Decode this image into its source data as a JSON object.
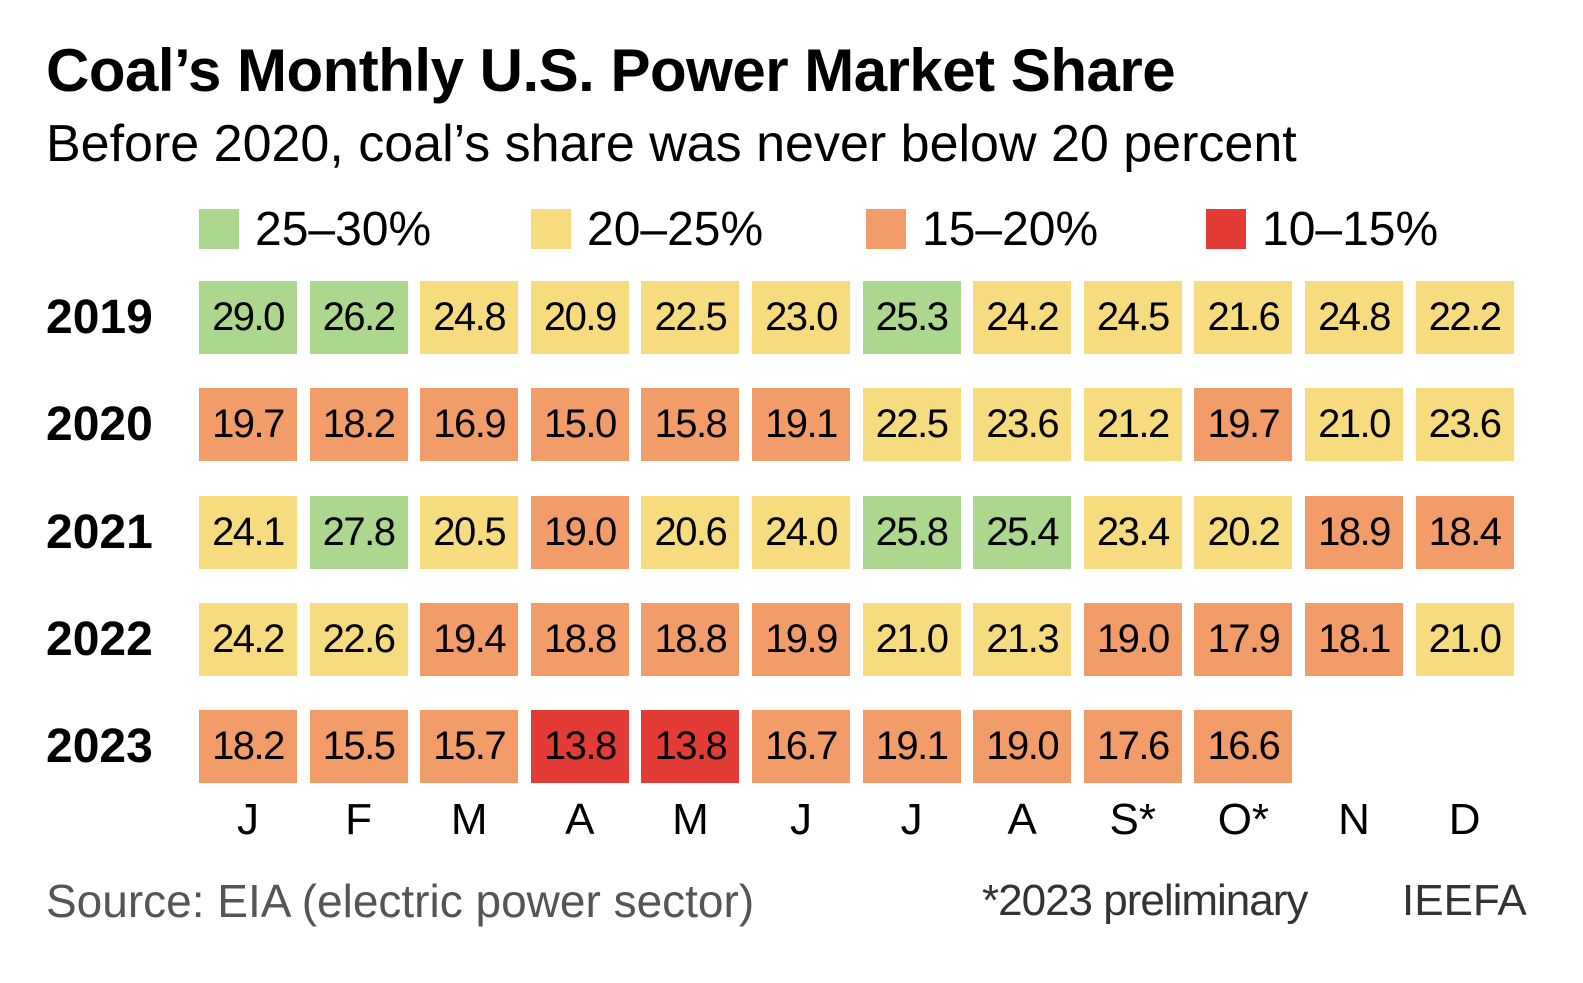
{
  "chart_data": {
    "type": "heatmap",
    "title": "Coal’s Monthly U.S. Power Market Share",
    "subtitle": "Before 2020, coal’s share was never below 20 percent",
    "legend": [
      {
        "label": "25–30%",
        "min": 25,
        "max": 30,
        "color": "#acd78e"
      },
      {
        "label": "20–25%",
        "min": 20,
        "max": 25,
        "color": "#f7db7f"
      },
      {
        "label": "15–20%",
        "min": 15,
        "max": 20,
        "color": "#f19c69"
      },
      {
        "label": "10–15%",
        "min": 10,
        "max": 15,
        "color": "#e33b36"
      }
    ],
    "legend_placement": "top",
    "months": [
      "J",
      "F",
      "M",
      "A",
      "M",
      "J",
      "J",
      "A",
      "S*",
      "O*",
      "N",
      "D"
    ],
    "rows": [
      {
        "year": "2019",
        "values": [
          "29.0",
          "26.2",
          "24.8",
          "20.9",
          "22.5",
          "23.0",
          "25.3",
          "24.2",
          "24.5",
          "21.6",
          "24.8",
          "22.2"
        ]
      },
      {
        "year": "2020",
        "values": [
          "19.7",
          "18.2",
          "16.9",
          "15.0",
          "15.8",
          "19.1",
          "22.5",
          "23.6",
          "21.2",
          "19.7",
          "21.0",
          "23.6"
        ]
      },
      {
        "year": "2021",
        "values": [
          "24.1",
          "27.8",
          "20.5",
          "19.0",
          "20.6",
          "24.0",
          "25.8",
          "25.4",
          "23.4",
          "20.2",
          "18.9",
          "18.4"
        ]
      },
      {
        "year": "2022",
        "values": [
          "24.2",
          "22.6",
          "19.4",
          "18.8",
          "18.8",
          "19.9",
          "21.0",
          "21.3",
          "19.0",
          "17.9",
          "18.1",
          "21.0"
        ]
      },
      {
        "year": "2023",
        "values": [
          "18.2",
          "15.5",
          "15.7",
          "13.8",
          "13.8",
          "16.7",
          "19.1",
          "19.0",
          "17.6",
          "16.6"
        ]
      }
    ]
  },
  "footer": {
    "source": "Source: EIA (electric power sector)",
    "note": "*2023 preliminary",
    "brand": "IEEFA"
  }
}
